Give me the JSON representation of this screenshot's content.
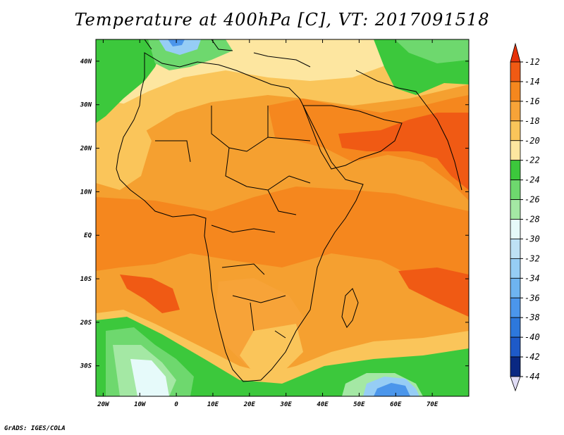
{
  "title": "Temperature at 400hPa [C], VT: 2017091518",
  "credit": "GrADS: IGES/COLA",
  "map": {
    "lon_range": [
      -22,
      80
    ],
    "lat_range": [
      -37,
      45
    ],
    "lat_ticks": [
      {
        "value": 40,
        "label": "40N"
      },
      {
        "value": 30,
        "label": "30N"
      },
      {
        "value": 20,
        "label": "20N"
      },
      {
        "value": 10,
        "label": "10N"
      },
      {
        "value": 0,
        "label": "EQ"
      },
      {
        "value": -10,
        "label": "10S"
      },
      {
        "value": -20,
        "label": "20S"
      },
      {
        "value": -30,
        "label": "30S"
      }
    ],
    "lon_ticks": [
      {
        "value": -20,
        "label": "20W"
      },
      {
        "value": -10,
        "label": "10W"
      },
      {
        "value": 0,
        "label": "0"
      },
      {
        "value": 10,
        "label": "10E"
      },
      {
        "value": 20,
        "label": "20E"
      },
      {
        "value": 30,
        "label": "30E"
      },
      {
        "value": 40,
        "label": "40E"
      },
      {
        "value": 50,
        "label": "50E"
      },
      {
        "value": 60,
        "label": "60E"
      },
      {
        "value": 70,
        "label": "70E"
      }
    ]
  },
  "colorbar": {
    "levels": [
      "-12",
      "-14",
      "-16",
      "-18",
      "-20",
      "-22",
      "-24",
      "-26",
      "-28",
      "-30",
      "-32",
      "-34",
      "-36",
      "-38",
      "-40",
      "-42",
      "-44"
    ],
    "colors": [
      "#f05a14",
      "#f5871e",
      "#f7a338",
      "#fac55a",
      "#fde6a0",
      "#3cc83c",
      "#6ed86e",
      "#a4e8a4",
      "#e6fafa",
      "#bee1f5",
      "#96cdf5",
      "#6eb4f0",
      "#4b96eb",
      "#2d78dc",
      "#1e5ac8",
      "#0a2882"
    ],
    "top_color": "#e6320a",
    "bottom_color": "#e0dcf5"
  }
}
